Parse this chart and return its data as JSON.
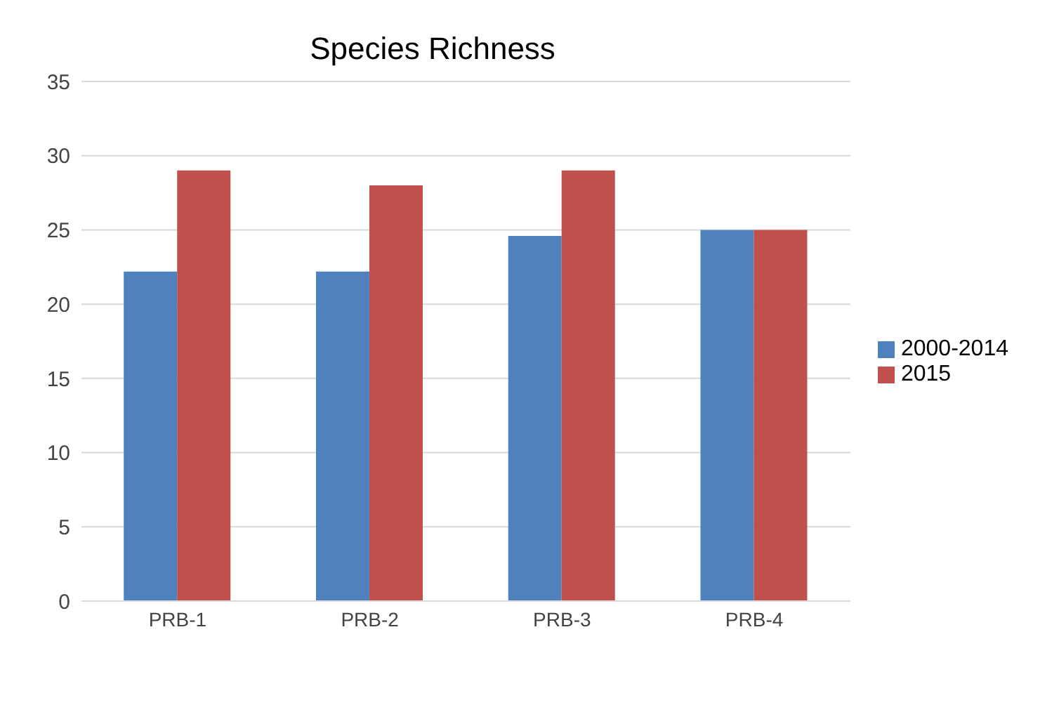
{
  "chart_data": {
    "type": "bar",
    "title": "Species Richness",
    "categories": [
      "PRB-1",
      "PRB-2",
      "PRB-3",
      "PRB-4"
    ],
    "series": [
      {
        "name": "2000-2014",
        "color": "#4f81bd",
        "values": [
          22.2,
          22.2,
          24.6,
          25
        ]
      },
      {
        "name": "2015",
        "color": "#c0504d",
        "values": [
          29,
          28,
          29,
          25
        ]
      }
    ],
    "ylim": [
      0,
      35
    ],
    "yticks": [
      0,
      5,
      10,
      15,
      20,
      25,
      30,
      35
    ],
    "grid": "y",
    "legend": "right"
  }
}
